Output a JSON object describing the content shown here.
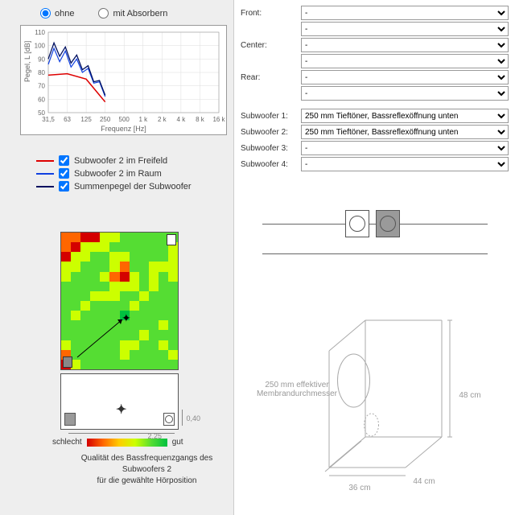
{
  "radios": {
    "ohne": "ohne",
    "mit": "mit Absorbern"
  },
  "chart": {
    "ylabel": "Pegel, L [dB]",
    "xlabel": "Frequenz [Hz]",
    "xticks": [
      "31,5",
      "63",
      "125",
      "250",
      "500",
      "1 k",
      "2 k",
      "4 k",
      "8 k",
      "16 k"
    ],
    "yticks": [
      50,
      60,
      70,
      80,
      90,
      100,
      110
    ],
    "ylim": [
      50,
      110
    ],
    "colors": {
      "sub_frei": "#dd0000",
      "sub_raum": "#1040e0",
      "sum": "#001060"
    },
    "series": {
      "sub_frei": [
        {
          "x": 0,
          "y": 78
        },
        {
          "x": 1,
          "y": 79
        },
        {
          "x": 2,
          "y": 75
        },
        {
          "x": 3,
          "y": 58
        }
      ],
      "sub_raum": [
        {
          "x": 0,
          "y": 86
        },
        {
          "x": 0.3,
          "y": 98
        },
        {
          "x": 0.6,
          "y": 88
        },
        {
          "x": 0.9,
          "y": 96
        },
        {
          "x": 1.2,
          "y": 84
        },
        {
          "x": 1.5,
          "y": 90
        },
        {
          "x": 1.8,
          "y": 80
        },
        {
          "x": 2.1,
          "y": 83
        },
        {
          "x": 2.4,
          "y": 72
        },
        {
          "x": 2.7,
          "y": 73
        },
        {
          "x": 3,
          "y": 62
        }
      ],
      "sum": [
        {
          "x": 0,
          "y": 90
        },
        {
          "x": 0.3,
          "y": 102
        },
        {
          "x": 0.6,
          "y": 92
        },
        {
          "x": 0.9,
          "y": 99
        },
        {
          "x": 1.2,
          "y": 87
        },
        {
          "x": 1.5,
          "y": 93
        },
        {
          "x": 1.8,
          "y": 82
        },
        {
          "x": 2.1,
          "y": 85
        },
        {
          "x": 2.4,
          "y": 73
        },
        {
          "x": 2.7,
          "y": 74
        },
        {
          "x": 3,
          "y": 63
        }
      ]
    }
  },
  "legend": [
    {
      "color": "#dd0000",
      "label": "Subwoofer 2 im Freifeld"
    },
    {
      "color": "#1040e0",
      "label": "Subwoofer 2 im Raum"
    },
    {
      "color": "#001060",
      "label": "Summenpegel der Subwoofer"
    }
  ],
  "heatmap": {
    "gradient_colors": [
      "#d40000",
      "#ff6600",
      "#ffcc00",
      "#ccff00",
      "#55dd33",
      "#00c040"
    ],
    "bad_label": "schlecht",
    "good_label": "gut",
    "caption_l1": "Qualität des Bassfrequenzgangs des Subwoofers 2",
    "caption_l2": "für die gewählte Hörposition",
    "room_w": "2,25",
    "room_h": "0,40",
    "cells_w": 12,
    "cells_h": 14,
    "cells": [
      "oorryygggggg",
      "oryyyggggggy",
      "ryyggyyggggy",
      "yygggyoggyyy",
      "ygggyorygygy",
      "gggggyyygygg",
      "gggyyyggyggg",
      "ggyggggygggg",
      "gyggggGggggg",
      "ggggggggggyg",
      "ggggggggyggg",
      "ygggggyyggyg",
      "ogggggyggggy",
      "rygggggggggg"
    ]
  },
  "form": {
    "front": "Front:",
    "center": "Center:",
    "rear": "Rear:",
    "sw1": "Subwoofer 1:",
    "sw2": "Subwoofer 2:",
    "sw3": "Subwoofer 3:",
    "sw4": "Subwoofer 4:",
    "dash": "-",
    "sw_val": "250 mm Tieftöner, Bassreflexöffnung unten"
  },
  "box3d": {
    "membrane_l1": "250 mm effektiver",
    "membrane_l2": "Membrandurchmesser",
    "d": "36 cm",
    "w": "44 cm",
    "h": "48 cm",
    "stroke": "#aaaaaa"
  },
  "speaker_row": {
    "box1_bg": "#ffffff",
    "box2_bg": "#9a9a9a"
  }
}
